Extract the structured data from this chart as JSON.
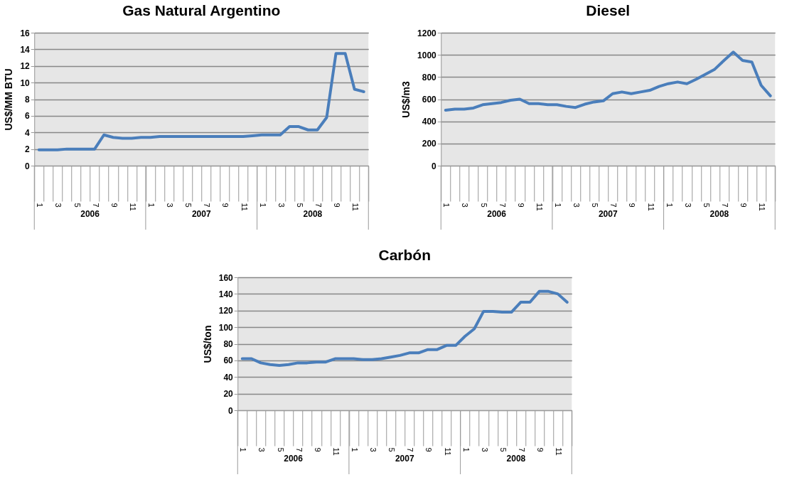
{
  "chart_data": [
    {
      "type": "line",
      "title": "Gas Natural Argentino",
      "ylabel": "US$/MM BTU",
      "color": "#4a7ebb",
      "grid": "y",
      "categories": [
        "1",
        null,
        "3",
        null,
        "5",
        null,
        "7",
        null,
        "9",
        null,
        "11",
        null,
        "1",
        null,
        "3",
        null,
        "5",
        null,
        "7",
        null,
        "9",
        null,
        "11",
        null,
        "1",
        null,
        "3",
        null,
        "5",
        null,
        "7",
        null,
        "9",
        null,
        "11",
        null
      ],
      "annotations": [
        "2006",
        "2007",
        "2008"
      ],
      "values": [
        1.9,
        1.9,
        1.9,
        2.0,
        2.0,
        2.0,
        2.0,
        3.7,
        3.4,
        3.3,
        3.3,
        3.4,
        3.4,
        3.5,
        3.5,
        3.5,
        3.5,
        3.5,
        3.5,
        3.5,
        3.5,
        3.5,
        3.5,
        3.6,
        3.7,
        3.7,
        3.7,
        4.7,
        4.7,
        4.3,
        4.3,
        5.8,
        13.5,
        13.5,
        9.2,
        8.9
      ],
      "ylim": [
        0,
        16
      ],
      "yticks": [
        0,
        2,
        4,
        6,
        8,
        10,
        12,
        14,
        16
      ]
    },
    {
      "type": "line",
      "title": "Diesel",
      "ylabel": "US$/m3",
      "color": "#4a7ebb",
      "grid": "y",
      "categories": [
        "1",
        null,
        "3",
        null,
        "5",
        null,
        "7",
        null,
        "9",
        null,
        "11",
        null,
        "1",
        null,
        "3",
        null,
        "5",
        null,
        "7",
        null,
        "9",
        null,
        "11",
        null,
        "1",
        null,
        "3",
        null,
        "5",
        null,
        "7",
        null,
        "9",
        null,
        "11",
        null
      ],
      "annotations": [
        "2006",
        "2007",
        "2008"
      ],
      "values": [
        500,
        510,
        510,
        520,
        550,
        560,
        570,
        590,
        600,
        560,
        560,
        550,
        550,
        535,
        525,
        555,
        575,
        585,
        650,
        665,
        650,
        665,
        680,
        715,
        740,
        755,
        740,
        780,
        825,
        870,
        950,
        1025,
        950,
        935,
        725,
        630
      ],
      "ylim": [
        0,
        1200
      ],
      "yticks": [
        0,
        200,
        400,
        600,
        800,
        1000,
        1200
      ]
    },
    {
      "type": "line",
      "title": "Carbón",
      "ylabel": "US$/ton",
      "color": "#4a7ebb",
      "grid": "y",
      "categories": [
        "1",
        null,
        "3",
        null,
        "5",
        null,
        "7",
        null,
        "9",
        null,
        "11",
        null,
        "1",
        null,
        "3",
        null,
        "5",
        null,
        "7",
        null,
        "9",
        null,
        "11",
        null,
        "1",
        null,
        "3",
        null,
        "5",
        null,
        "7",
        null,
        "9",
        null,
        "11",
        null
      ],
      "annotations": [
        "2006",
        "2007",
        "2008"
      ],
      "values": [
        62,
        62,
        57,
        55,
        54,
        55,
        57,
        57,
        58,
        58,
        62,
        62,
        62,
        61,
        61,
        62,
        64,
        66,
        69,
        69,
        73,
        73,
        78,
        78,
        89,
        98,
        119,
        119,
        118,
        118,
        130,
        130,
        143,
        143,
        140,
        130
      ],
      "ylim": [
        0,
        160
      ],
      "yticks": [
        0,
        20,
        40,
        60,
        80,
        100,
        120,
        140,
        160
      ]
    }
  ]
}
